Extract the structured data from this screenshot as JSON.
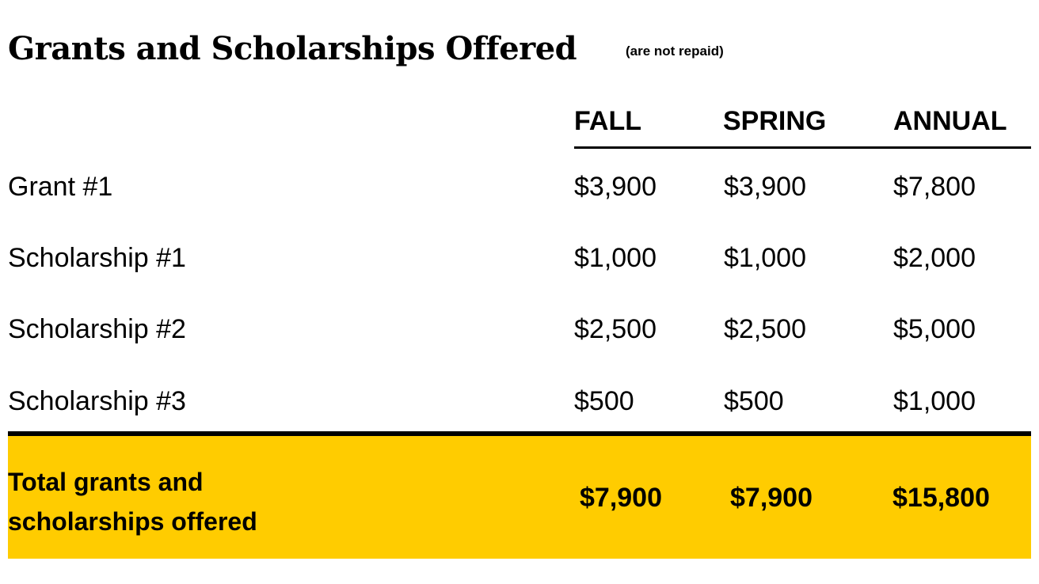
{
  "header": {
    "title": "Grants and Scholarships Offered",
    "subtitle": "(are not repaid)"
  },
  "table": {
    "columns": [
      "FALL",
      "SPRING",
      "ANNUAL"
    ],
    "rows": [
      {
        "label": "Grant #1",
        "fall": "$3,900",
        "spring": "$3,900",
        "annual": "$7,800"
      },
      {
        "label": "Scholarship #1",
        "fall": "$1,000",
        "spring": "$1,000",
        "annual": "$2,000"
      },
      {
        "label": "Scholarship #2",
        "fall": "$2,500",
        "spring": "$2,500",
        "annual": "$5,000"
      },
      {
        "label": "Scholarship #3",
        "fall": "$500",
        "spring": "$500",
        "annual": "$1,000"
      }
    ],
    "total": {
      "label": "Total grants and scholarships offered",
      "fall": "$7,900",
      "spring": "$7,900",
      "annual": "$15,800"
    }
  },
  "colors": {
    "highlight": "#FFCC00",
    "text": "#000000",
    "rule": "#000000"
  }
}
